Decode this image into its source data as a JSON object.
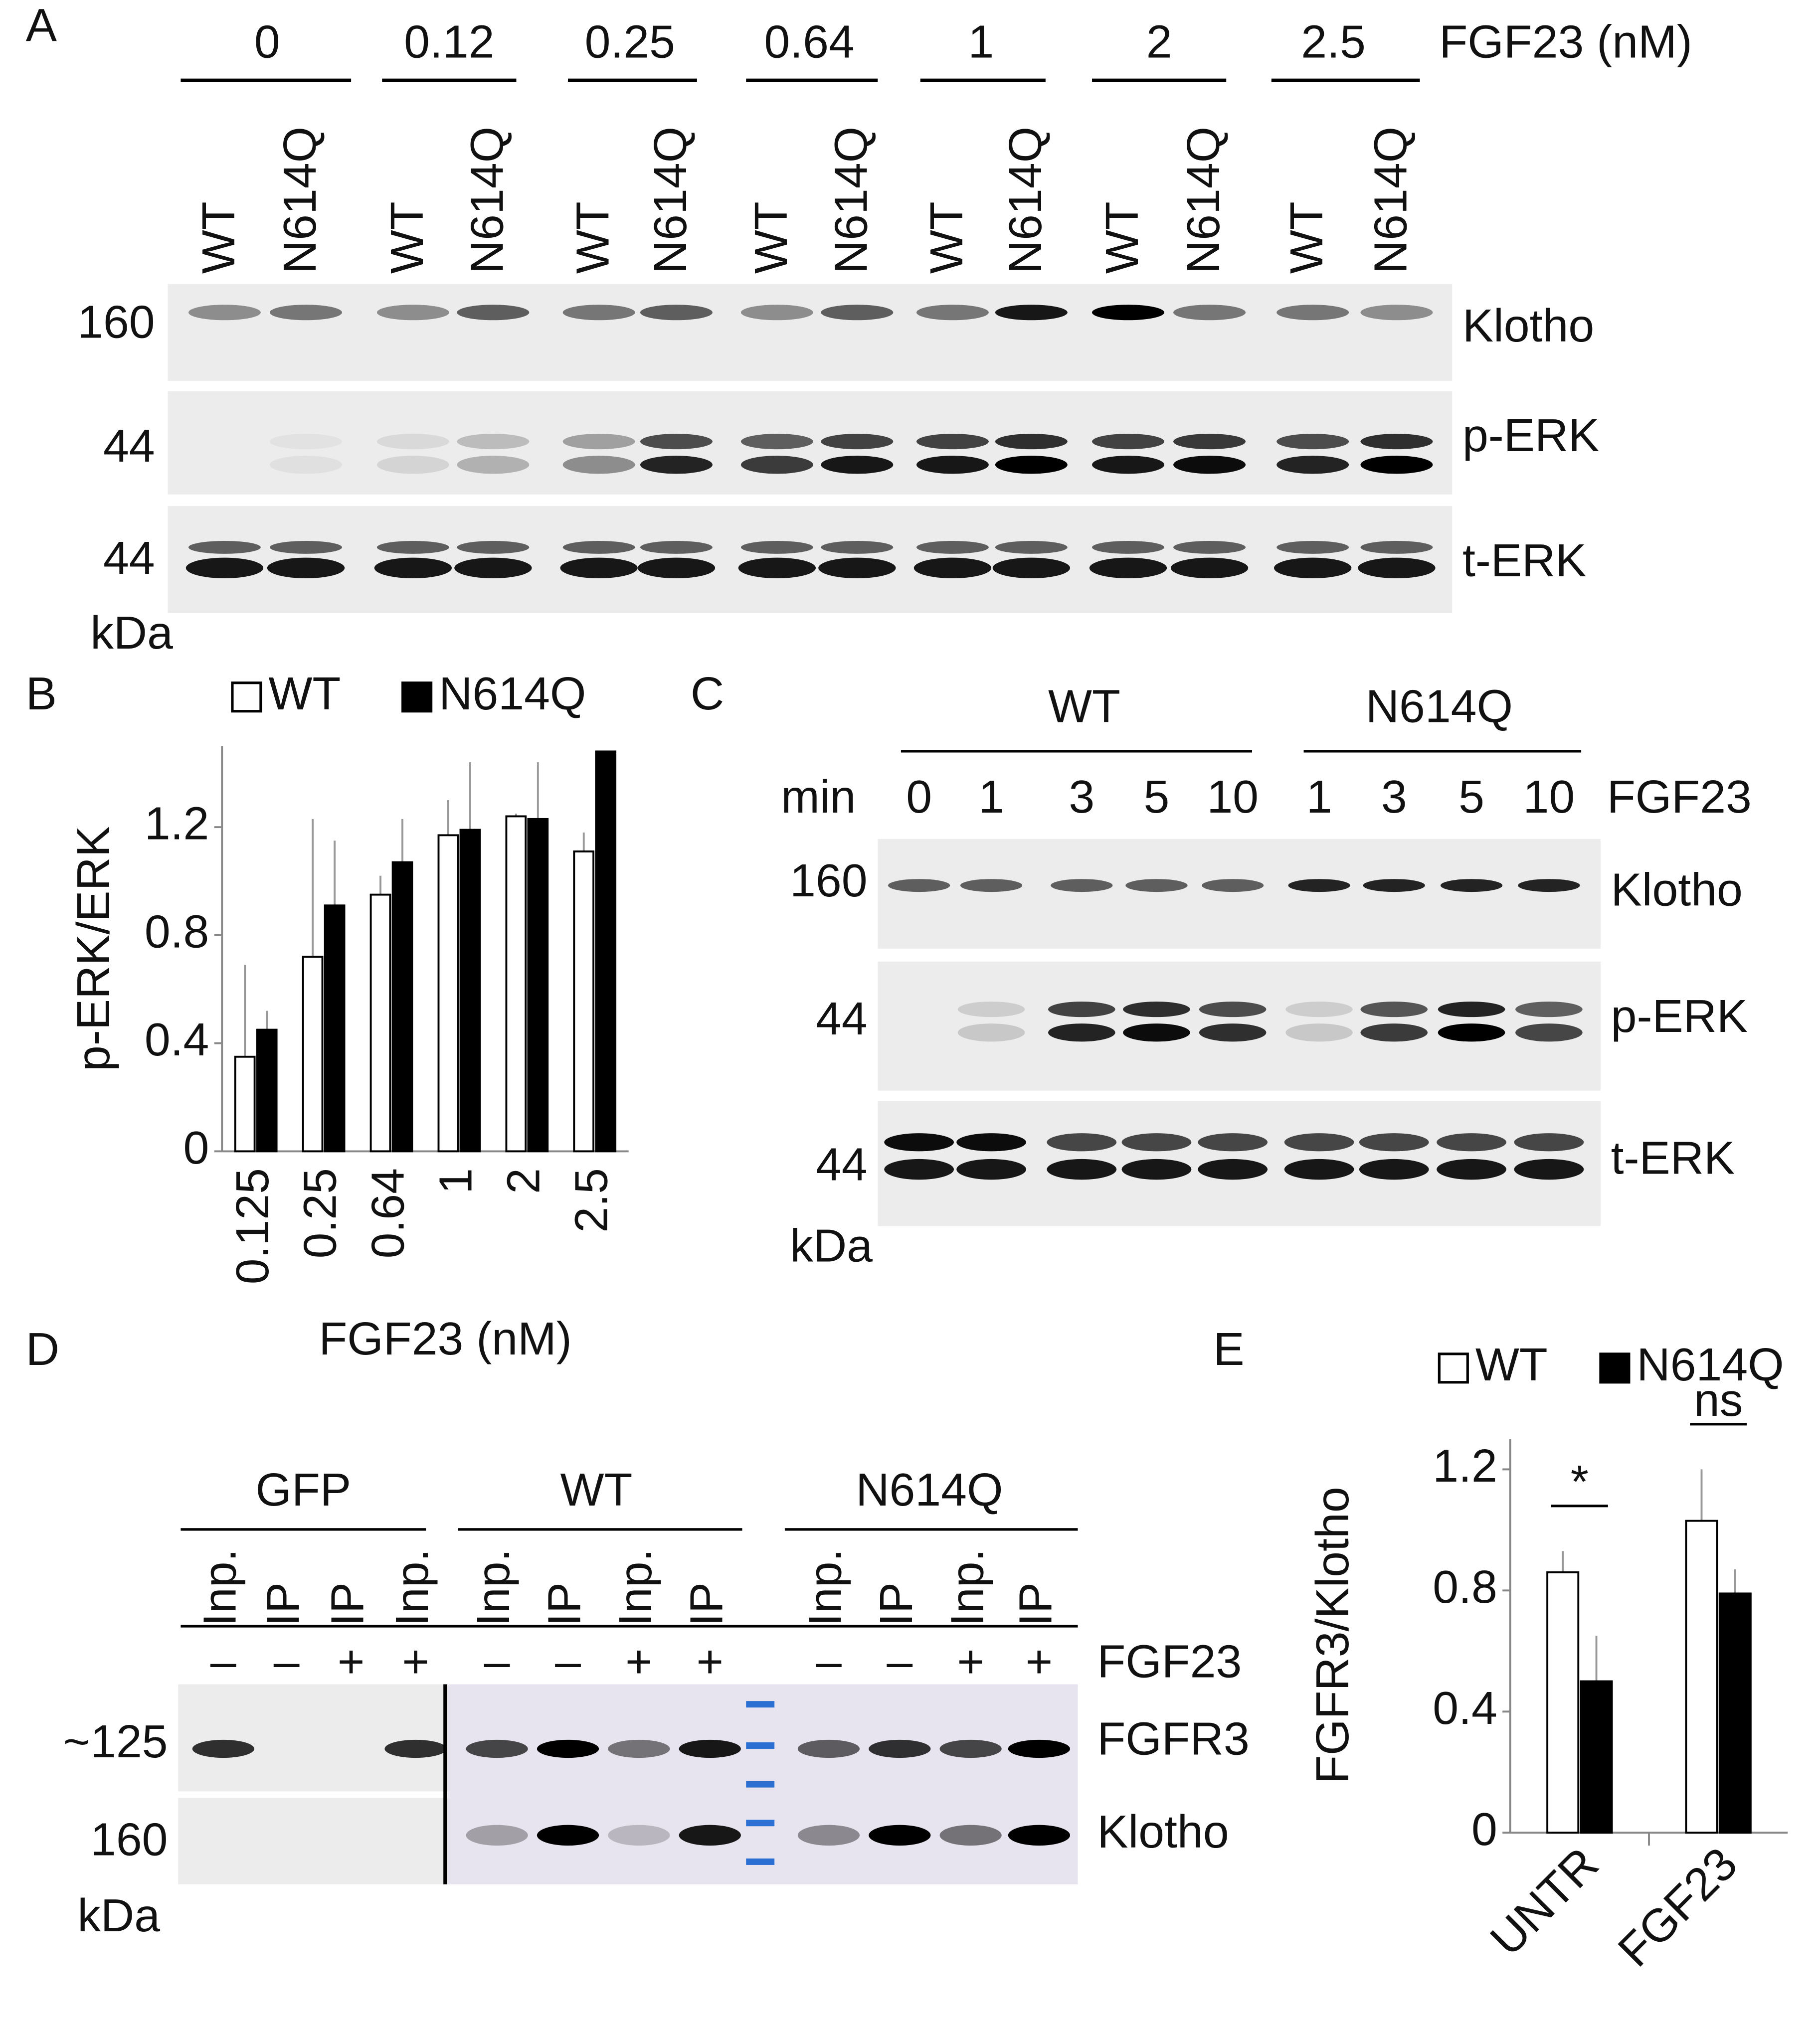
{
  "panel_labels": [
    "A",
    "B",
    "C",
    "D",
    "E"
  ],
  "blot_a": {
    "doses": [
      "0",
      "0.12",
      "0.25",
      "0.64",
      "1",
      "2",
      "2.5"
    ],
    "dose_unit": "FGF23 (nM)",
    "lanes": [
      "WT",
      "N614Q",
      "WT",
      "N614Q",
      "WT",
      "N614Q",
      "WT",
      "N614Q",
      "WT",
      "N614Q",
      "WT",
      "N614Q",
      "WT",
      "N614Q"
    ],
    "markers": [
      "160",
      "44",
      "44"
    ],
    "unit": "kDa",
    "rows": [
      "Klotho",
      "p-ERK",
      "t-ERK"
    ]
  },
  "blot_c": {
    "groups": [
      "WT",
      "N614Q"
    ],
    "time_label": "min",
    "times": [
      "0",
      "1",
      "3",
      "5",
      "10",
      "1",
      "3",
      "5",
      "10"
    ],
    "treatment": "FGF23",
    "markers": [
      "160",
      "44",
      "44"
    ],
    "unit": "kDa",
    "rows": [
      "Klotho",
      "p-ERK",
      "t-ERK"
    ]
  },
  "blot_d": {
    "groups": [
      "GFP",
      "WT",
      "N614Q"
    ],
    "lanes": [
      "Inp.",
      "IP",
      "IP",
      "Inp.",
      "Inp.",
      "IP",
      "Inp.",
      "IP",
      "Inp.",
      "IP",
      "Inp.",
      "IP"
    ],
    "signs": [
      "–",
      "–",
      "+",
      "+",
      "–",
      "–",
      "+",
      "+",
      "–",
      "–",
      "+",
      "+"
    ],
    "treatment": "FGF23",
    "markers": [
      "~125",
      "160"
    ],
    "unit": "kDa",
    "rows": [
      "FGFR3",
      "Klotho"
    ]
  },
  "chart_data": [
    {
      "type": "bar",
      "ylabel": "p-ERK/ERK",
      "xlabel": "FGF23 (nM)",
      "categories": [
        "0.125",
        "0.25",
        "0.64",
        "1",
        "2",
        "2.5"
      ],
      "series": [
        {
          "name": "WT",
          "color": "#ffffff",
          "values": [
            0.35,
            0.72,
            0.95,
            1.17,
            1.24,
            1.11
          ],
          "errors": [
            0.34,
            0.51,
            0.07,
            0.13,
            0.01,
            0.07
          ]
        },
        {
          "name": "N614Q",
          "color": "#000000",
          "values": [
            0.45,
            0.91,
            1.07,
            1.19,
            1.23,
            1.48
          ],
          "errors": [
            0.07,
            0.24,
            0.16,
            0.25,
            0.21,
            null
          ]
        }
      ],
      "ylim": [
        0,
        1.5
      ],
      "yticks": [
        0,
        0.4,
        0.8,
        1.2
      ],
      "legend": "top"
    },
    {
      "type": "bar",
      "ylabel": "FGFR3/Klotho",
      "categories": [
        "UNTR",
        "FGF23"
      ],
      "series": [
        {
          "name": "WT",
          "color": "#ffffff",
          "values": [
            0.86,
            1.03
          ],
          "errors": [
            0.07,
            0.17
          ]
        },
        {
          "name": "N614Q",
          "color": "#000000",
          "values": [
            0.5,
            0.79
          ],
          "errors": [
            0.15,
            0.08
          ]
        }
      ],
      "ylim": [
        0,
        1.3
      ],
      "yticks": [
        0,
        0.4,
        0.8,
        1.2
      ],
      "annotations": [
        "*",
        "ns"
      ],
      "legend": "top"
    }
  ]
}
